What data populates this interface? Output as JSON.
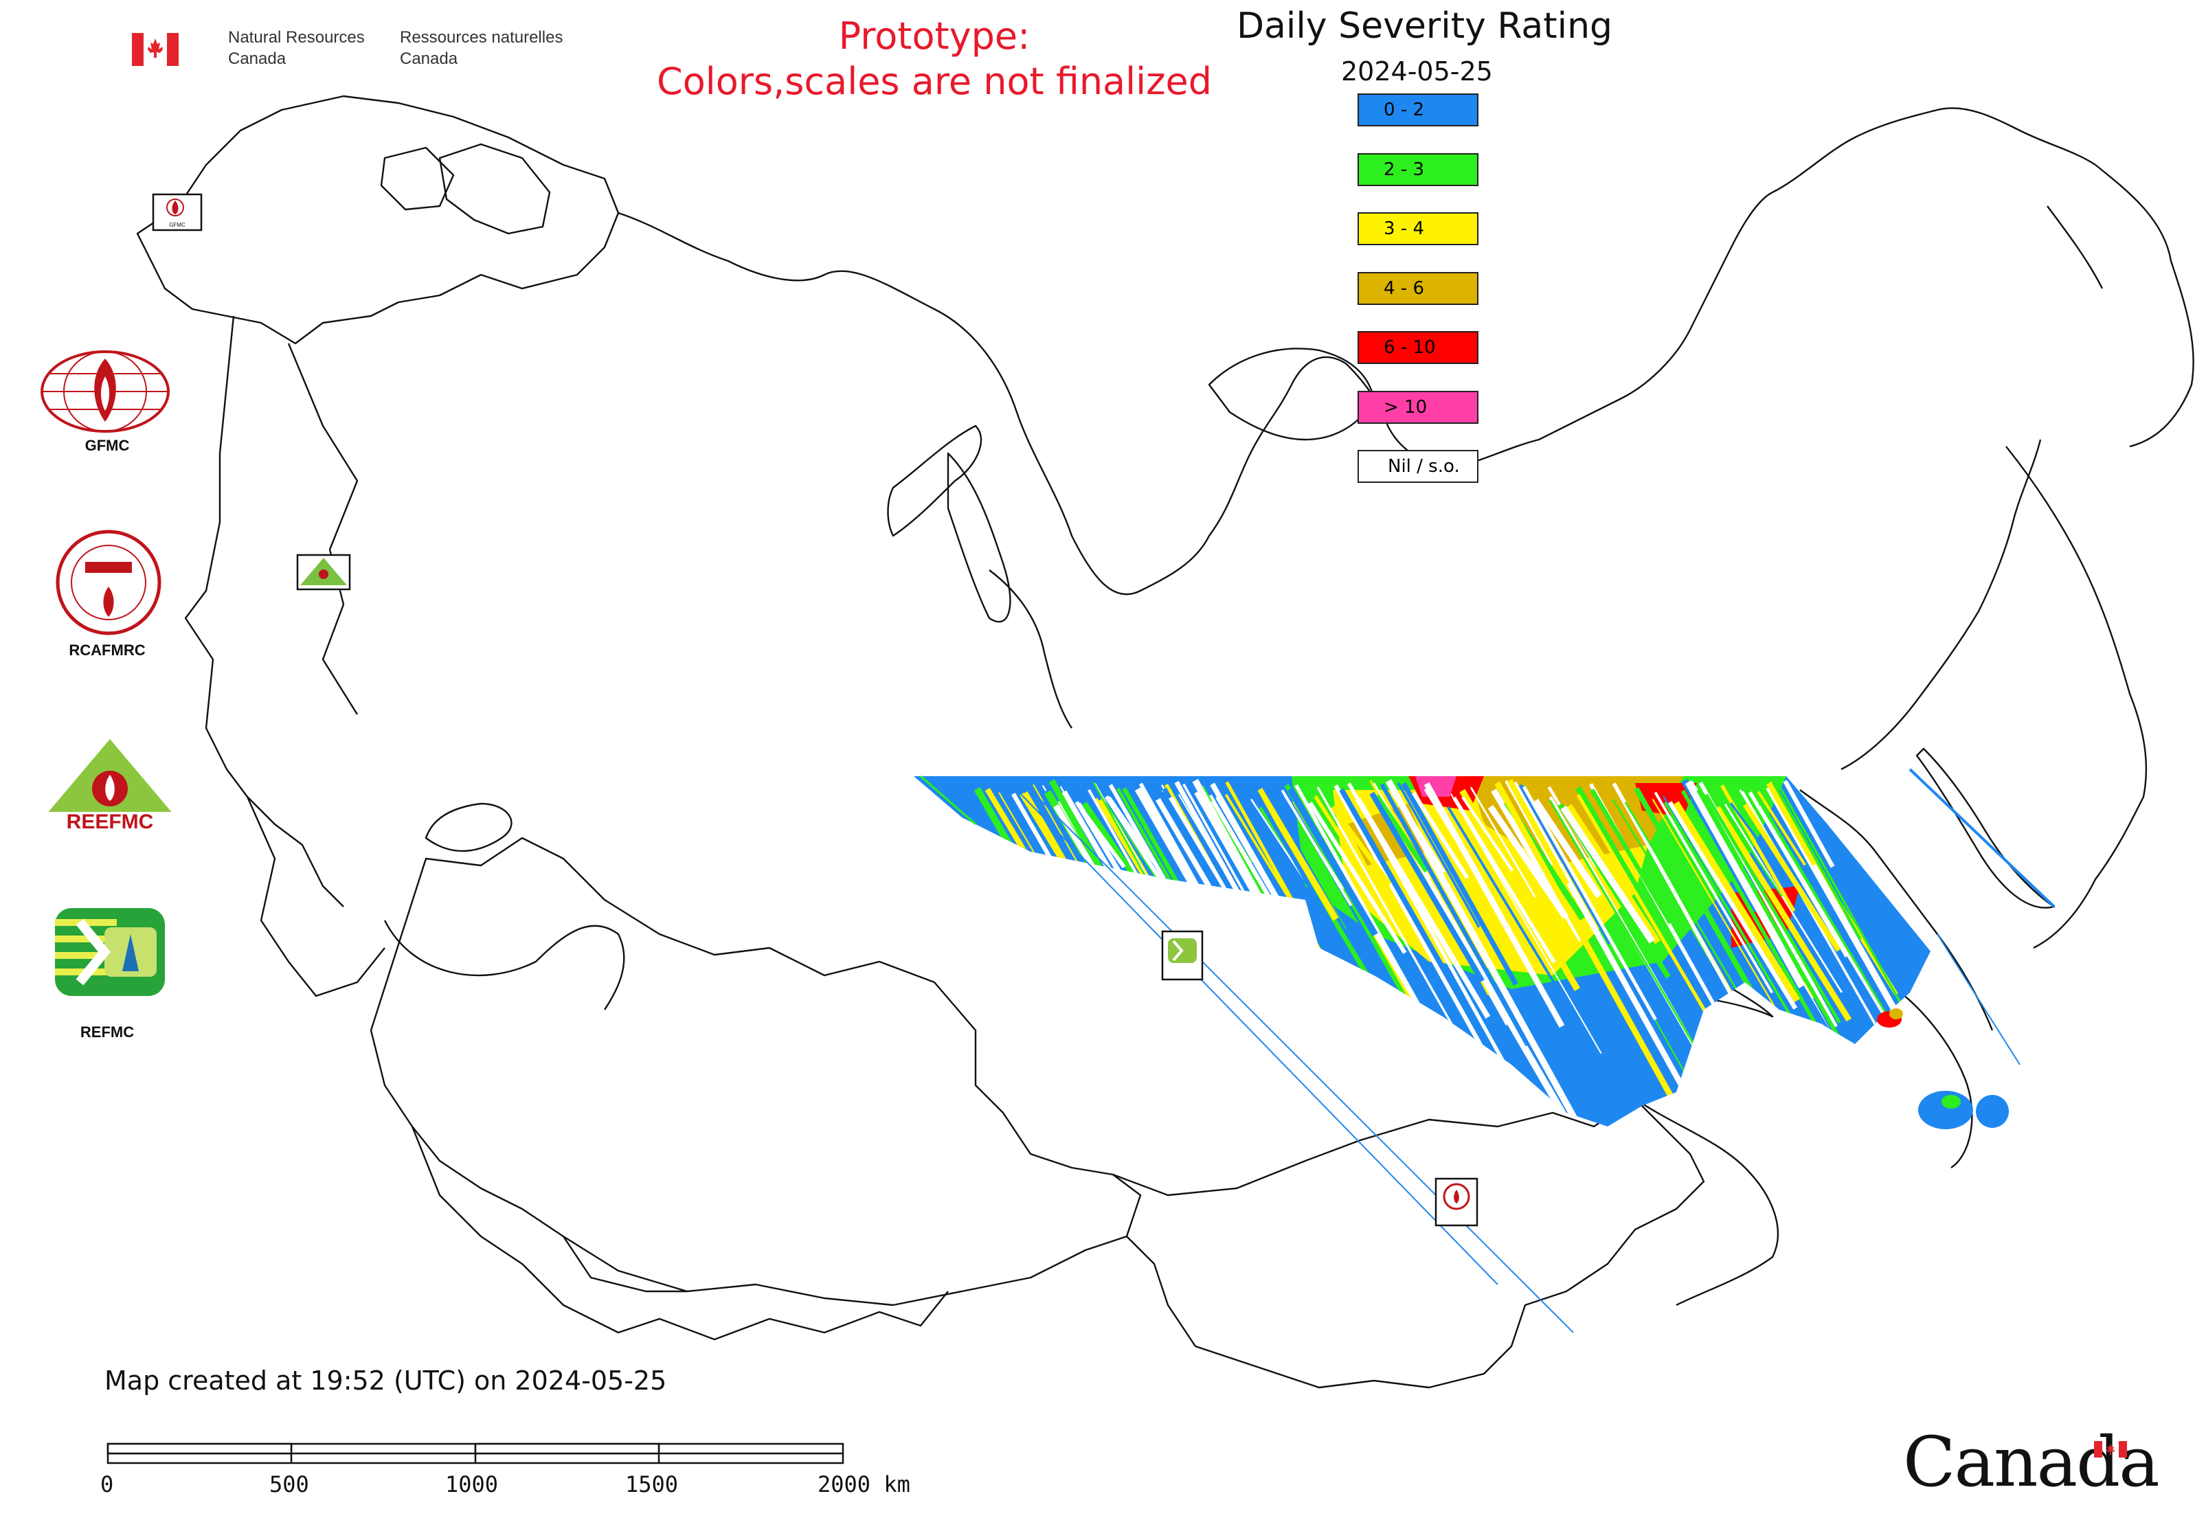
{
  "header": {
    "nrcan_en_1": "Natural Resources",
    "nrcan_en_2": "Canada",
    "nrcan_fr_1": "Ressources naturelles",
    "nrcan_fr_2": "Canada",
    "prototype_line1": "Prototype:",
    "prototype_line2": "Colors,scales are not finalized"
  },
  "legend": {
    "title": "Daily Severity Rating",
    "date": "2024-05-25",
    "items": [
      {
        "label": "0 - 2",
        "color": "#1e88f0"
      },
      {
        "label": "2 - 3",
        "color": "#2dee1e"
      },
      {
        "label": "3 - 4",
        "color": "#fff200"
      },
      {
        "label": "4 - 6",
        "color": "#dcb400"
      },
      {
        "label": "6 - 10",
        "color": "#ff0000"
      },
      {
        "label": "> 10",
        "color": "#ff3ea8"
      },
      {
        "label": "Nil / s.o.",
        "color": "#ffffff"
      }
    ]
  },
  "logos": {
    "gfmc": "GFMC",
    "gfmc_marker_text": "GFMC",
    "rcafmrc": "RCAFMRC",
    "reefmc_text": "REEFMC",
    "refmc": "REFMC"
  },
  "footer": {
    "created": "Map created at 19:52 (UTC) on 2024-05-25",
    "wordmark": "Canada",
    "scale_ticks": [
      "0",
      "500",
      "1000",
      "1500",
      "2000 km"
    ]
  }
}
